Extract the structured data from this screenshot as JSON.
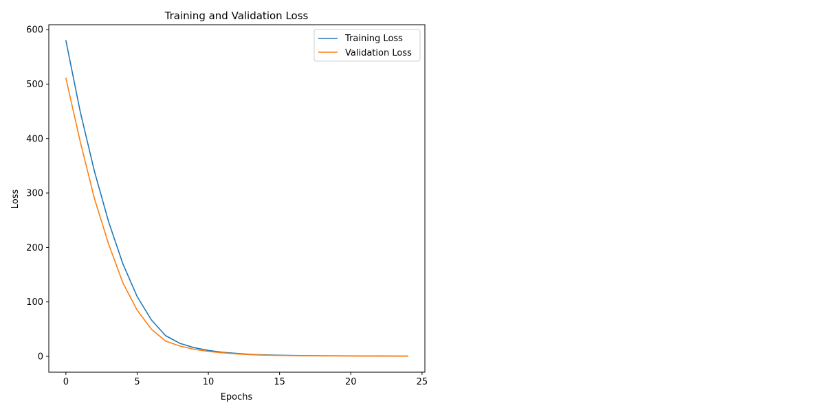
{
  "chart_data": {
    "type": "line",
    "title": "Training and Validation Loss",
    "xlabel": "Epochs",
    "ylabel": "Loss",
    "xlim": [
      -1.2,
      25.2
    ],
    "ylim": [
      -29,
      609
    ],
    "x_ticks": [
      0,
      5,
      10,
      15,
      20,
      25
    ],
    "y_ticks": [
      0,
      100,
      200,
      300,
      400,
      500,
      600
    ],
    "grid": false,
    "legend_position": "top-right",
    "x": [
      0,
      1,
      2,
      3,
      4,
      5,
      6,
      7,
      8,
      9,
      10,
      11,
      12,
      13,
      14,
      15,
      16,
      17,
      18,
      19,
      20,
      21,
      22,
      23,
      24
    ],
    "series": [
      {
        "name": "Training Loss",
        "color": "#1f77b4",
        "values": [
          580,
          450,
          340,
          247,
          170,
          110,
          67,
          38,
          24,
          16,
          11,
          7.5,
          5.5,
          3.5,
          2.7,
          2.1,
          1.7,
          1.4,
          1.2,
          1.0,
          0.9,
          0.8,
          0.7,
          0.6,
          0.55
        ]
      },
      {
        "name": "Validation Loss",
        "color": "#ff7f0e",
        "values": [
          511,
          395,
          290,
          206,
          135,
          85,
          50,
          28,
          19,
          13,
          9,
          6.5,
          4.5,
          3.0,
          2.2,
          1.7,
          1.3,
          1.1,
          0.9,
          0.8,
          0.7,
          0.6,
          0.55,
          0.5,
          0.45
        ]
      }
    ]
  }
}
